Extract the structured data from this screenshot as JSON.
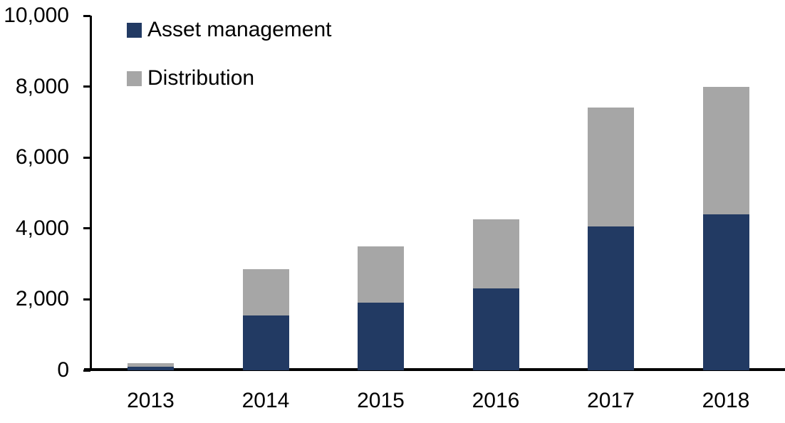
{
  "chart_data": {
    "type": "bar",
    "stacked": true,
    "title": "",
    "xlabel": "",
    "ylabel": "",
    "categories": [
      "2013",
      "2014",
      "2015",
      "2016",
      "2017",
      "2018"
    ],
    "series": [
      {
        "name": "Asset management",
        "color": "#223A63",
        "values": [
          100,
          1550,
          1900,
          2300,
          4050,
          4400
        ]
      },
      {
        "name": "Distribution",
        "color": "#A6A6A6",
        "values": [
          100,
          1300,
          1600,
          1950,
          3350,
          3600
        ]
      }
    ],
    "totals": [
      200,
      2850,
      3500,
      4250,
      7400,
      8000
    ],
    "ylim": [
      0,
      10000
    ],
    "ytick_interval": 2000,
    "ytick_labels": [
      "0",
      "2,000",
      "4,000",
      "6,000",
      "8,000",
      "10,000"
    ],
    "grid": false,
    "legend_position": "top-left-inside",
    "axis_color": "#000000",
    "text_color": "#000000",
    "background_color": "#FFFFFF"
  }
}
